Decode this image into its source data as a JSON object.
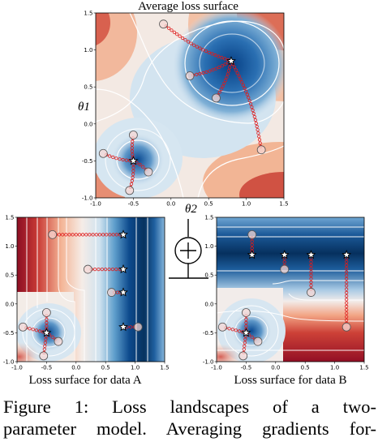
{
  "figure": {
    "caption_line1": "Figure 1:  Loss landscapes of a two-",
    "caption_line2": "parameter model. Averaging gradients for-"
  },
  "chart_data": [
    {
      "type": "contour",
      "title": "Average loss surface",
      "xlabel": "θ2",
      "ylabel": "θ1",
      "xlim": [
        -1.0,
        1.5
      ],
      "ylim": [
        -1.0,
        1.5
      ],
      "xticks": [
        "-1.0",
        "-0.5",
        "0.0",
        "0.5",
        "1.0",
        "1.5"
      ],
      "yticks": [
        "-1.0",
        "-0.5",
        "0.0",
        "0.5",
        "1.0",
        "1.5"
      ],
      "minima": [
        [
          0.8,
          0.85
        ],
        [
          -0.5,
          -0.5
        ]
      ],
      "starts": [
        [
          -0.1,
          1.35
        ],
        [
          0.25,
          0.65
        ],
        [
          0.6,
          0.35
        ],
        [
          1.2,
          -0.35
        ],
        [
          -0.5,
          -0.15
        ],
        [
          -0.9,
          -0.4
        ],
        [
          -0.3,
          -0.65
        ],
        [
          -0.55,
          -0.9
        ]
      ]
    },
    {
      "type": "contour",
      "title": "Loss surface for data A",
      "xlim": [
        -1.0,
        1.5
      ],
      "ylim": [
        -1.0,
        1.5
      ],
      "xticks": [
        "-1.0",
        "-0.5",
        "0.0",
        "0.5",
        "1.0",
        "1.5"
      ],
      "yticks": [
        "-1.0",
        "-0.5",
        "0.0",
        "0.5",
        "1.0",
        "1.5"
      ],
      "minima": [
        [
          0.8,
          1.2
        ],
        [
          0.8,
          0.6
        ],
        [
          0.8,
          0.2
        ],
        [
          0.8,
          -0.4
        ],
        [
          -0.5,
          -0.5
        ]
      ],
      "starts": [
        [
          -0.4,
          1.2
        ],
        [
          0.2,
          0.6
        ],
        [
          0.6,
          0.2
        ],
        [
          1.05,
          -0.4
        ],
        [
          -0.5,
          -0.15
        ],
        [
          -0.9,
          -0.4
        ],
        [
          -0.3,
          -0.65
        ],
        [
          -0.55,
          -0.9
        ]
      ]
    },
    {
      "type": "contour",
      "title": "Loss surface for data B",
      "xlim": [
        -1.0,
        1.5
      ],
      "ylim": [
        -1.0,
        1.5
      ],
      "xticks": [
        "-1.0",
        "-0.5",
        "0.0",
        "0.5",
        "1.0",
        "1.5"
      ],
      "yticks": [
        "-1.0",
        "-0.5",
        "0.0",
        "0.5",
        "1.0",
        "1.5"
      ],
      "minima": [
        [
          -0.4,
          0.85
        ],
        [
          0.15,
          0.85
        ],
        [
          0.6,
          0.85
        ],
        [
          1.2,
          0.85
        ],
        [
          -0.5,
          -0.5
        ]
      ],
      "starts": [
        [
          -0.4,
          1.2
        ],
        [
          0.15,
          0.6
        ],
        [
          0.6,
          0.2
        ],
        [
          1.2,
          -0.4
        ],
        [
          -0.5,
          -0.15
        ],
        [
          -0.9,
          -0.4
        ],
        [
          -0.3,
          -0.65
        ],
        [
          -0.55,
          -0.9
        ]
      ]
    }
  ]
}
